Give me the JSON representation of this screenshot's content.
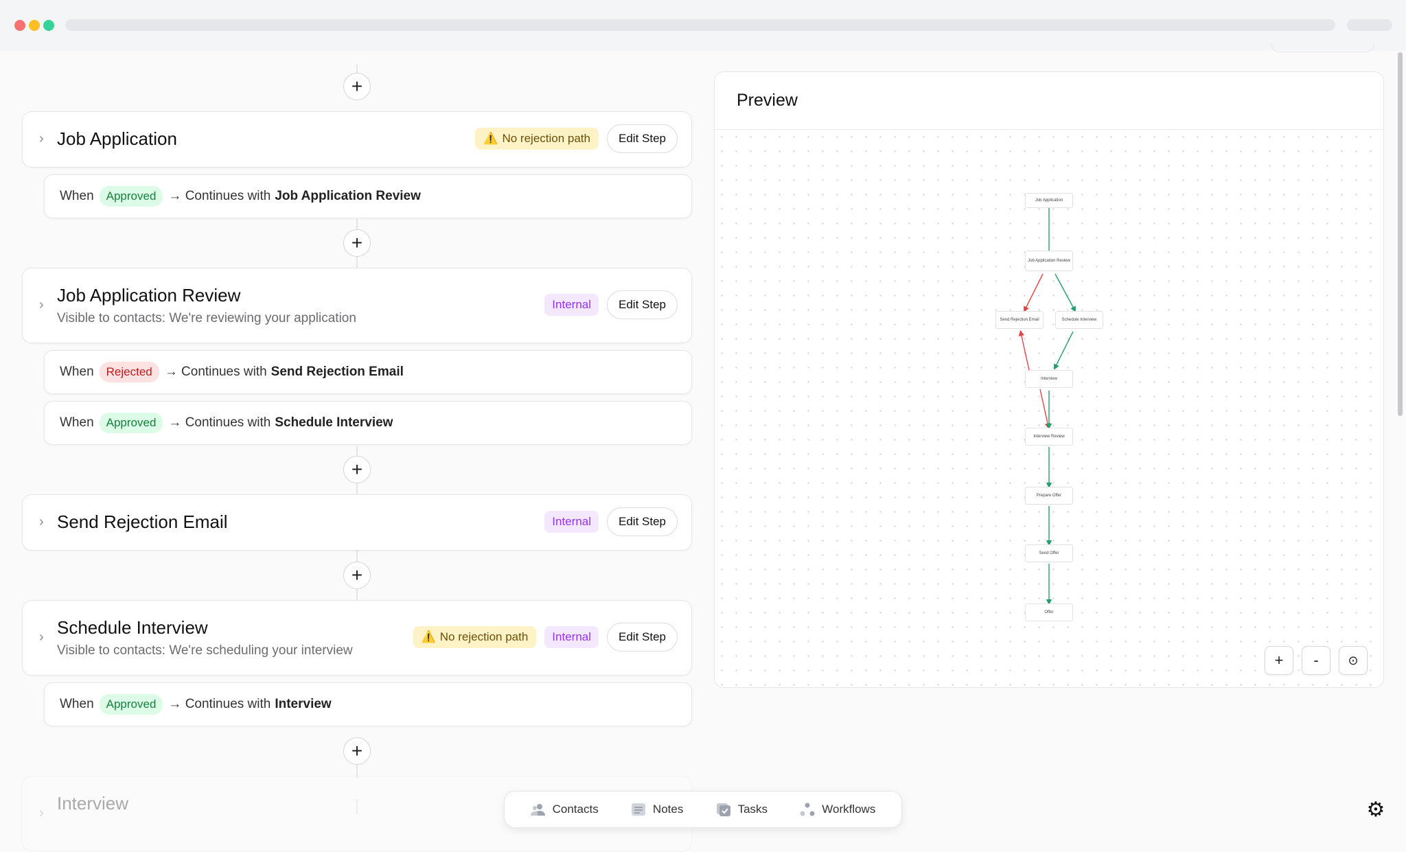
{
  "steps": [
    {
      "title": "Job Application",
      "warning": "No rejection path",
      "edit": "Edit Step"
    },
    {
      "title": "Job Application Review",
      "subtitle": "Visible to contacts: We're reviewing your application",
      "tag": "Internal",
      "edit": "Edit Step"
    },
    {
      "title": "Send Rejection Email",
      "tag": "Internal",
      "edit": "Edit Step"
    },
    {
      "title": "Schedule Interview",
      "subtitle": "Visible to contacts: We're scheduling your interview",
      "warning": "No rejection path",
      "tag": "Internal",
      "edit": "Edit Step"
    },
    {
      "title": "Interview"
    }
  ],
  "transitions": [
    {
      "when": "When",
      "status": "Approved",
      "text": "→ Continues with",
      "target": "Job Application Review"
    },
    {
      "when": "When",
      "status": "Rejected",
      "text": "→ Continues with",
      "target": "Send Rejection Email"
    },
    {
      "when": "When",
      "status": "Approved",
      "text": "→ Continues with",
      "target": "Schedule Interview"
    },
    {
      "when": "When",
      "status": "Approved",
      "text": "→ Continues with",
      "target": "Interview"
    }
  ],
  "preview": {
    "title": "Preview",
    "nodes": [
      "Job Application",
      "Job Application Review",
      "Send Rejection Email",
      "Schedule Interview",
      "Interview",
      "Interview Review",
      "Prepare Offer",
      "Send Offer",
      "Offer"
    ],
    "zoom_in": "+",
    "zoom_out": "-",
    "fit": "⊙"
  },
  "nav": {
    "contacts": "Contacts",
    "notes": "Notes",
    "tasks": "Tasks",
    "workflows": "Workflows"
  },
  "icons": {
    "plus": "+",
    "chevron": "›",
    "warning": "⚠️",
    "settings": "⚙"
  },
  "colors": {
    "approved": "#15803d",
    "rejected": "#b91c1c",
    "internal": "#9333ea",
    "warning": "#fef3c7"
  }
}
